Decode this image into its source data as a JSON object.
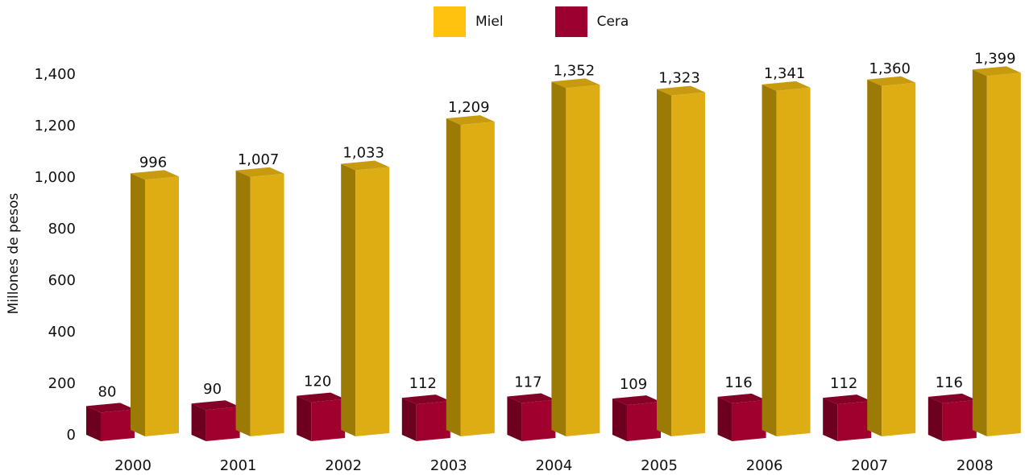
{
  "chart_data": {
    "type": "bar",
    "categories": [
      "2000",
      "2001",
      "2002",
      "2003",
      "2004",
      "2005",
      "2006",
      "2007",
      "2008"
    ],
    "series": [
      {
        "name": "Cera",
        "values": [
          80,
          90,
          120,
          112,
          117,
          109,
          116,
          112,
          116
        ],
        "value_labels": [
          "80",
          "90",
          "120",
          "112",
          "117",
          "109",
          "116",
          "112",
          "116"
        ]
      },
      {
        "name": "Miel",
        "values": [
          996,
          1007,
          1033,
          1209,
          1352,
          1323,
          1341,
          1360,
          1399
        ],
        "value_labels": [
          "996",
          "1,007",
          "1,033",
          "1,209",
          "1,352",
          "1,323",
          "1,341",
          "1,360",
          "1,399"
        ]
      }
    ],
    "ylabel": "Millones de pesos",
    "xlabel": "",
    "ylim": [
      0,
      1400
    ],
    "y_ticks": [
      0,
      200,
      400,
      600,
      800,
      1000,
      1200,
      1400
    ],
    "y_tick_labels": [
      "0",
      "200",
      "400",
      "600",
      "800",
      "1,000",
      "1,200",
      "1,400"
    ],
    "grid": false,
    "legend_position": "top-center",
    "style": "3d-bars"
  },
  "legend": [
    {
      "label": "Miel",
      "color": "#FFC20E"
    },
    {
      "label": "Cera",
      "color": "#9B0031"
    }
  ],
  "colors": {
    "miel_front": "#DEAD14",
    "miel_side": "#9C7A06",
    "miel_top": "#C89A0E",
    "cera_front": "#A0002E",
    "cera_side": "#6E001F",
    "cera_top": "#850026"
  }
}
